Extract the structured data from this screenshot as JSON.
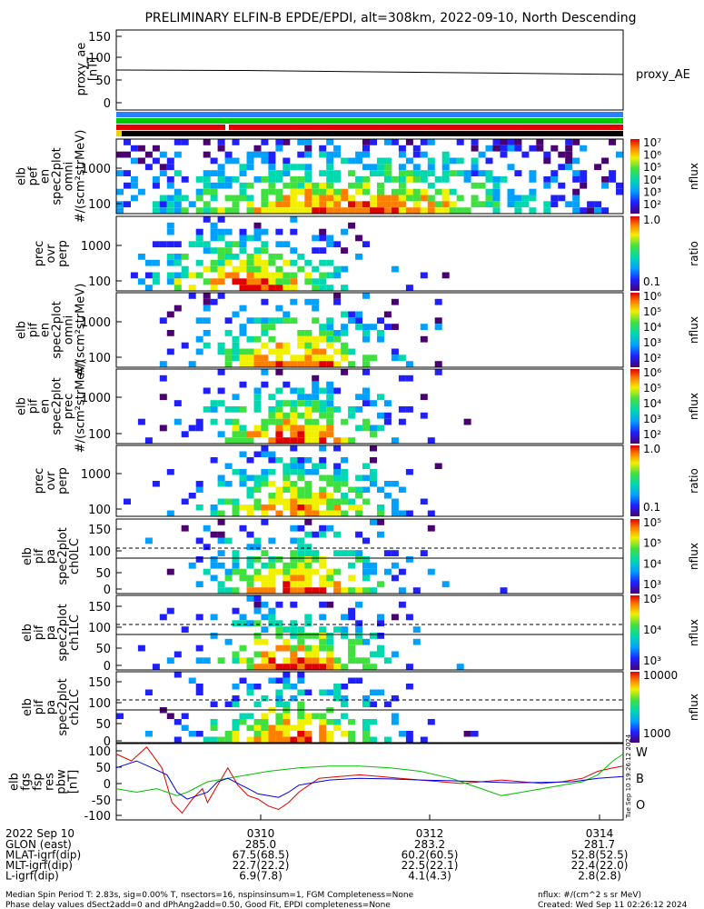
{
  "title": "PRELIMINARY ELFIN-B EPDE/EPDI, alt=308km, 2022-09-10, North Descending",
  "chart_data": [
    {
      "type": "line",
      "ylabel": [
        "proxy_ae",
        "[nT]"
      ],
      "yticks": [
        "150",
        "100",
        "50",
        "0"
      ],
      "ylim": [
        -20,
        160
      ],
      "xlim": [
        0,
        100
      ],
      "series": [
        {
          "name": "proxy_AE",
          "color": "#000000",
          "points": [
            [
              0,
              70
            ],
            [
              25,
              69
            ],
            [
              50,
              66
            ],
            [
              75,
              63
            ],
            [
              100,
              60
            ]
          ]
        }
      ]
    },
    {
      "type": "heatmap",
      "ylabel": [
        "elb",
        "pef",
        "en",
        "spec2plot",
        "omni",
        "#/(scm²strMeV)"
      ],
      "yticks": [
        "1000",
        "100"
      ],
      "colorbar": {
        "label": "nflux",
        "ticks": [
          "10⁷",
          "10⁶",
          "10⁵",
          "10⁴",
          "10³",
          "10²"
        ]
      }
    },
    {
      "type": "heatmap",
      "ylabel": [
        "prec",
        "ovr",
        "perp"
      ],
      "yticks": [
        "1000",
        "100"
      ],
      "colorbar": {
        "label": "ratio",
        "ticks": [
          "1.0",
          "0.1"
        ]
      }
    },
    {
      "type": "heatmap",
      "ylabel": [
        "elb",
        "pif",
        "en",
        "spec2plot",
        "omni",
        "#/(scm²strMeV)"
      ],
      "yticks": [
        "1000",
        "100"
      ],
      "colorbar": {
        "label": "nflux",
        "ticks": [
          "10⁶",
          "10⁵",
          "10⁴",
          "10³",
          "10²"
        ]
      }
    },
    {
      "type": "heatmap",
      "ylabel": [
        "elb",
        "pif",
        "en",
        "spec2plot",
        "prec",
        "#/(scm²strMeV)"
      ],
      "yticks": [
        "1000",
        "100"
      ],
      "colorbar": {
        "label": "nflux",
        "ticks": [
          "10⁶",
          "10⁵",
          "10⁴",
          "10³",
          "10²"
        ]
      }
    },
    {
      "type": "heatmap",
      "ylabel": [
        "prec",
        "ovr",
        "perp"
      ],
      "yticks": [
        "1000",
        "100"
      ],
      "colorbar": {
        "label": "ratio",
        "ticks": [
          "1.0",
          "0.1"
        ]
      }
    },
    {
      "type": "heatmap",
      "ylabel": [
        "elb",
        "pif",
        "pa",
        "spec2plot",
        "ch0LC"
      ],
      "yticks": [
        "150",
        "100",
        "50",
        "0"
      ],
      "colorbar": {
        "label": "nflux",
        "ticks": [
          "10⁵",
          "10⁵",
          "10⁴",
          "10³"
        ]
      }
    },
    {
      "type": "heatmap",
      "ylabel": [
        "elb",
        "pif",
        "pa",
        "spec2plot",
        "ch1LC"
      ],
      "yticks": [
        "150",
        "100",
        "50",
        "0"
      ],
      "colorbar": {
        "label": "nflux",
        "ticks": [
          "10⁵",
          "10⁴",
          "10³"
        ]
      }
    },
    {
      "type": "heatmap",
      "ylabel": [
        "elb",
        "pif",
        "pa",
        "spec2plot",
        "ch2LC"
      ],
      "yticks": [
        "150",
        "100",
        "50",
        "0"
      ],
      "colorbar": {
        "label": "nflux",
        "ticks": [
          "10000",
          "1000"
        ]
      }
    },
    {
      "type": "line",
      "ylabel": [
        "elb",
        "fgs",
        "fsp",
        "res",
        "pbw",
        "[nT]"
      ],
      "yticks": [
        "100",
        "50",
        "0",
        "-50",
        "-100"
      ],
      "ylim": [
        -110,
        110
      ],
      "xlim": [
        0,
        100
      ],
      "series": [
        {
          "name": "W",
          "color": "#e00000",
          "points": [
            [
              0,
              80
            ],
            [
              3,
              60
            ],
            [
              6,
              100
            ],
            [
              9,
              40
            ],
            [
              11,
              -60
            ],
            [
              13,
              -90
            ],
            [
              15,
              -50
            ],
            [
              17,
              -20
            ],
            [
              18,
              -60
            ],
            [
              20,
              -10
            ],
            [
              22,
              40
            ],
            [
              24,
              -10
            ],
            [
              26,
              -40
            ],
            [
              28,
              -50
            ],
            [
              30,
              -70
            ],
            [
              32,
              -80
            ],
            [
              34,
              -60
            ],
            [
              36,
              -30
            ],
            [
              38,
              -10
            ],
            [
              40,
              10
            ],
            [
              44,
              15
            ],
            [
              48,
              20
            ],
            [
              52,
              15
            ],
            [
              56,
              10
            ],
            [
              60,
              5
            ],
            [
              64,
              0
            ],
            [
              68,
              -5
            ],
            [
              72,
              0
            ],
            [
              76,
              5
            ],
            [
              80,
              0
            ],
            [
              84,
              -5
            ],
            [
              88,
              0
            ],
            [
              92,
              10
            ],
            [
              95,
              30
            ],
            [
              98,
              40
            ],
            [
              100,
              45
            ]
          ]
        },
        {
          "name": "B",
          "color": "#00c000",
          "points": [
            [
              0,
              -20
            ],
            [
              4,
              -30
            ],
            [
              8,
              -20
            ],
            [
              12,
              -40
            ],
            [
              14,
              -30
            ],
            [
              18,
              0
            ],
            [
              22,
              10
            ],
            [
              26,
              20
            ],
            [
              30,
              30
            ],
            [
              36,
              40
            ],
            [
              42,
              45
            ],
            [
              48,
              45
            ],
            [
              54,
              40
            ],
            [
              60,
              30
            ],
            [
              66,
              10
            ],
            [
              72,
              -20
            ],
            [
              76,
              -40
            ],
            [
              80,
              -30
            ],
            [
              84,
              -20
            ],
            [
              88,
              -10
            ],
            [
              92,
              0
            ],
            [
              95,
              20
            ],
            [
              98,
              60
            ],
            [
              100,
              80
            ]
          ]
        },
        {
          "name": "O",
          "color": "#0000e0",
          "points": [
            [
              0,
              40
            ],
            [
              4,
              60
            ],
            [
              7,
              40
            ],
            [
              10,
              20
            ],
            [
              12,
              -30
            ],
            [
              14,
              -50
            ],
            [
              16,
              -40
            ],
            [
              18,
              -30
            ],
            [
              20,
              0
            ],
            [
              22,
              10
            ],
            [
              24,
              -5
            ],
            [
              26,
              -20
            ],
            [
              28,
              -35
            ],
            [
              30,
              -40
            ],
            [
              32,
              -45
            ],
            [
              34,
              -30
            ],
            [
              36,
              -10
            ],
            [
              38,
              -5
            ],
            [
              42,
              5
            ],
            [
              48,
              10
            ],
            [
              54,
              8
            ],
            [
              60,
              5
            ],
            [
              66,
              3
            ],
            [
              72,
              0
            ],
            [
              78,
              -3
            ],
            [
              84,
              -2
            ],
            [
              90,
              0
            ],
            [
              95,
              10
            ],
            [
              100,
              15
            ]
          ]
        }
      ]
    }
  ],
  "axis_table": {
    "date": "2022 Sep 10",
    "rows": [
      {
        "label": "GLON (east)",
        "values": [
          "285.0",
          "283.2",
          "281.7"
        ]
      },
      {
        "label": "MLAT-igrf(dip)",
        "values": [
          "67.5(68.5)",
          "60.2(60.5)",
          "52.8(52.5)"
        ]
      },
      {
        "label": "MLT-igrf(dip)",
        "values": [
          "22.7(22.2)",
          "22.5(22.1)",
          "22.4(22.0)"
        ]
      },
      {
        "label": "L-igrf(dip)",
        "values": [
          "6.9(7.8)",
          "4.1(4.3)",
          "2.8(2.8)"
        ]
      }
    ],
    "times": [
      "0310",
      "0312",
      "0314"
    ]
  },
  "footer": {
    "line1": "Median Spin Period T: 2.83s, sig=0.00% T, nsectors=16, nspinsinsum=1, FGM Completeness=None",
    "line2": "Phase delay values dSect2add=0 and dPhAng2add=0.50, Good Fit, EPDI completeness=None",
    "right1": "nflux: #/(cm^2 s sr MeV)",
    "right2": "Created: Wed Sep 11 02:26:12 2024"
  },
  "side_stamp": "Tue Sep 10 19:26:12 2024",
  "colors": {
    "bar_blue": "#2a7fff",
    "bar_green": "#00c800",
    "bar_red": "#e00000",
    "bar_black": "#000000"
  }
}
